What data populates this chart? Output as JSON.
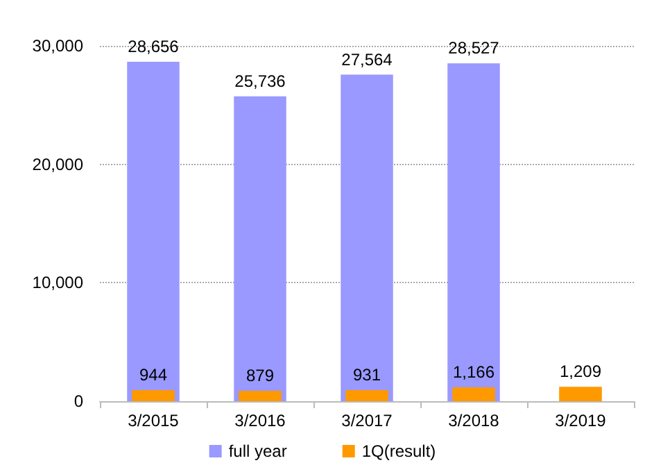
{
  "chart_data": {
    "type": "bar",
    "categories": [
      "3/2015",
      "3/2016",
      "3/2017",
      "3/2018",
      "3/2019"
    ],
    "series": [
      {
        "name": "full year",
        "color": "#9999ff",
        "values": [
          28656,
          25736,
          27564,
          28527,
          null
        ],
        "value_labels": [
          "28,656",
          "25,736",
          "27,564",
          "28,527",
          null
        ]
      },
      {
        "name": "1Q(result)",
        "color": "#ff9900",
        "values": [
          944,
          879,
          931,
          1166,
          1209
        ],
        "value_labels": [
          "944",
          "879",
          "931",
          "1,166",
          "1,209"
        ]
      }
    ],
    "ylim": [
      0,
      30000
    ],
    "yticks": [
      0,
      {
        "value": 10000,
        "label": "10,000"
      },
      {
        "value": 20000,
        "label": "20,000"
      },
      {
        "value": 30000,
        "label": "30,000"
      }
    ],
    "grid": "y",
    "legend": "bottom"
  }
}
